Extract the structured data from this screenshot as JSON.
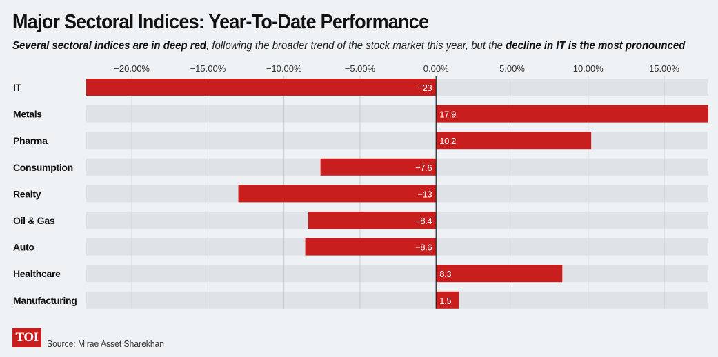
{
  "header": {
    "title": "Major Sectoral Indices: Year-To-Date Performance",
    "subtitle_bold1": "Several sectoral indices are in deep red",
    "subtitle_mid": ", following the broader trend of the stock market this year, but the ",
    "subtitle_bold2": "decline in IT is the most pronounced"
  },
  "footer": {
    "logo": "TOI",
    "source": "Source: Mirae Asset Sharekhan"
  },
  "colors": {
    "bar": "#c81e1e",
    "track": "#dfe3e7",
    "background": "#eef2f5"
  },
  "chart_data": {
    "type": "bar",
    "orientation": "horizontal",
    "categories": [
      "IT",
      "Metals",
      "Pharma",
      "Consumption",
      "Realty",
      "Oil & Gas",
      "Auto",
      "Healthcare",
      "Manufacturing"
    ],
    "values": [
      -23,
      17.9,
      10.2,
      -7.6,
      -13,
      -8.4,
      -8.6,
      8.3,
      1.5
    ],
    "value_labels": [
      "−23",
      "17.9",
      "10.2",
      "−7.6",
      "−13",
      "−8.4",
      "−8.6",
      "8.3",
      "1.5"
    ],
    "xticks": [
      -20,
      -15,
      -10,
      -5,
      0,
      5,
      10,
      15
    ],
    "xtick_labels": [
      "−20.00%",
      "−15.00%",
      "−10.00%",
      "−5.00%",
      "0.00%",
      "5.00%",
      "10.00%",
      "15.00%"
    ],
    "xlim": [
      -23,
      17.9
    ],
    "grid": true
  }
}
